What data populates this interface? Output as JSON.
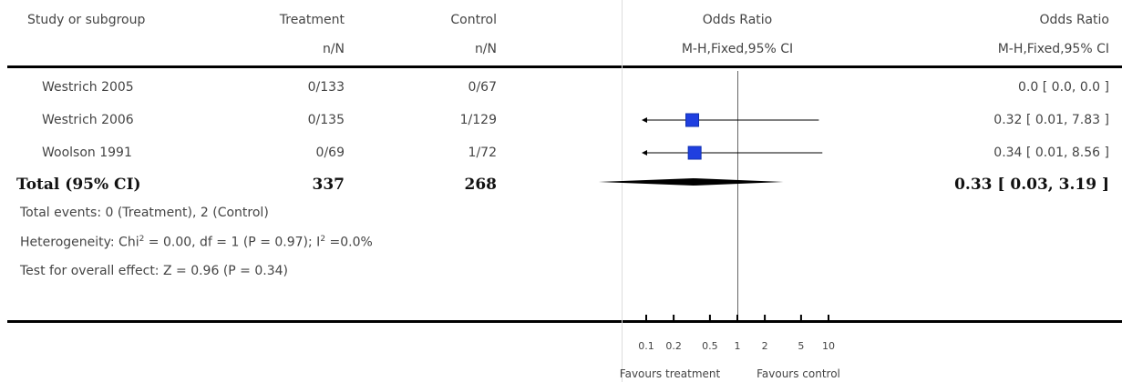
{
  "headers": {
    "study": "Study or subgroup",
    "treatment": "Treatment",
    "treatment_sub": "n/N",
    "control": "Control",
    "control_sub": "n/N",
    "plot": "Odds Ratio",
    "plot_sub": "M-H,Fixed,95% CI",
    "effect": "Odds Ratio",
    "effect_sub": "M-H,Fixed,95% CI"
  },
  "studies": [
    {
      "name": "Westrich 2005",
      "treatment": "0/133",
      "control": "0/67",
      "ci_text": "0.0 [ 0.0, 0.0 ]"
    },
    {
      "name": "Westrich 2006",
      "treatment": "0/135",
      "control": "1/129",
      "ci_text": "0.32 [ 0.01, 7.83 ]"
    },
    {
      "name": "Woolson 1991",
      "treatment": "0/69",
      "control": "1/72",
      "ci_text": "0.34 [ 0.01, 8.56 ]"
    }
  ],
  "total": {
    "label": "Total (95% CI)",
    "treatment": "337",
    "control": "268",
    "ci_text": "0.33 [ 0.03, 3.19 ]"
  },
  "footnotes": {
    "events": "Total events: 0 (Treatment), 2 (Control)",
    "heterogeneity_pre": "Heterogeneity: Chi",
    "heterogeneity_sup1": "2",
    "heterogeneity_mid": " = 0.00, df = 1 (P = 0.97); I",
    "heterogeneity_sup2": "2",
    "heterogeneity_post": " =0.0%",
    "overall": "Test for overall effect: Z = 0.96 (P = 0.34)"
  },
  "axis": {
    "favours_left": "Favours treatment",
    "favours_right": "Favours control"
  },
  "chart_data": {
    "type": "forest",
    "scale": "log",
    "xlim": [
      0.1,
      10
    ],
    "reference": 1,
    "ticks": [
      0.1,
      0.2,
      0.5,
      1,
      2,
      5,
      10
    ],
    "tick_labels": [
      "0.1",
      "0.2",
      "0.5",
      "1",
      "2",
      "5",
      "10"
    ],
    "studies": [
      {
        "name": "Westrich 2005",
        "or": null,
        "lo": null,
        "hi": null
      },
      {
        "name": "Westrich 2006",
        "or": 0.32,
        "lo": 0.01,
        "hi": 7.83
      },
      {
        "name": "Woolson 1991",
        "or": 0.34,
        "lo": 0.01,
        "hi": 8.56
      }
    ],
    "pooled": {
      "or": 0.33,
      "lo": 0.03,
      "hi": 3.19
    },
    "marker_color": "#1f3fe0"
  }
}
